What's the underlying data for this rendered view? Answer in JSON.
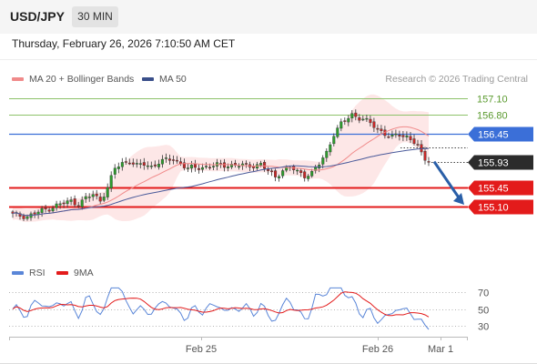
{
  "header": {
    "symbol": "USD/JPY",
    "timeframe": "30 MIN",
    "datetime": "Thursday, February 26, 2026 7:10:50 AM CET"
  },
  "legend": {
    "ma20": "MA 20 + Bollinger Bands",
    "ma50": "MA 50",
    "copyright": "Research © 2026 Trading Central"
  },
  "rsi_legend": {
    "rsi": "RSI",
    "ma9": "9MA"
  },
  "colors": {
    "bullish": "#2e9e2e",
    "bearish": "#c62828",
    "support": "#e31b1b",
    "resistance_major": "#3b6fd8",
    "resistance_minor": "#8dc26a",
    "ma20": "#f08a8a",
    "ma50": "#4a5a9a",
    "bollinger_fill": "#fde3e3",
    "rsi": "#5a86d8",
    "rsi_ma": "#e31b1b",
    "arrow": "#2a5fa8",
    "current_price_bg": "#2b2b2b"
  },
  "chart_data": {
    "type": "candlestick",
    "y_range": [
      154.85,
      157.35
    ],
    "x_ticks": [
      "Feb 25",
      "Feb 26",
      "Mar 1"
    ],
    "current_price": 155.93,
    "levels": [
      {
        "value": 157.1,
        "label": "157.10",
        "kind": "resistance-minor"
      },
      {
        "value": 156.8,
        "label": "156.80",
        "kind": "resistance-minor"
      },
      {
        "value": 156.45,
        "label": "156.45",
        "kind": "resistance-major"
      },
      {
        "value": 155.45,
        "label": "155.45",
        "kind": "support"
      },
      {
        "value": 155.1,
        "label": "155.10",
        "kind": "support"
      }
    ],
    "forecast": {
      "from": 155.93,
      "to": 155.1
    },
    "rsi_levels": [
      70,
      50,
      30
    ],
    "rsi_range": [
      20,
      80
    ]
  }
}
